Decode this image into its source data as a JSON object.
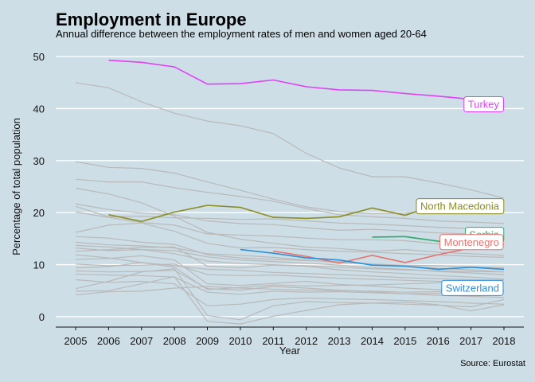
{
  "chart_data": {
    "type": "line",
    "title": "Employment in Europe",
    "subtitle": "Annual difference between the employment rates of men and women aged 20-64",
    "xlabel": "Year",
    "ylabel": "Percentage of total population",
    "caption": "Source: Eurostat",
    "x": [
      2005,
      2006,
      2007,
      2008,
      2009,
      2010,
      2011,
      2012,
      2013,
      2014,
      2015,
      2016,
      2017,
      2018
    ],
    "ylim": [
      -2,
      52
    ],
    "yticks": [
      0,
      10,
      20,
      30,
      40,
      50
    ],
    "grid": "horizontal",
    "legend": "direct labels at line ends",
    "colors": {
      "background": "#cddee6",
      "gridline": "#ffffff",
      "other_countries": "#b9b9b9",
      "Turkey": "#e040fb",
      "North Macedonia": "#8b8d1f",
      "Serbia": "#2ea76d",
      "Montenegro": "#e8726c",
      "Switzerland": "#2b8fd9"
    },
    "highlighted_series": [
      {
        "name": "Turkey",
        "values": [
          null,
          49.3,
          48.9,
          48.0,
          44.7,
          44.8,
          45.5,
          44.2,
          43.6,
          43.5,
          42.9,
          42.4,
          41.8,
          40.9
        ]
      },
      {
        "name": "North Macedonia",
        "values": [
          null,
          19.6,
          18.3,
          20.1,
          21.4,
          21.0,
          19.1,
          18.9,
          19.2,
          20.9,
          19.5,
          21.6,
          21.2,
          21.3
        ]
      },
      {
        "name": "Serbia",
        "values": [
          null,
          null,
          null,
          null,
          null,
          null,
          null,
          null,
          null,
          15.3,
          15.4,
          14.5,
          14.1,
          14.8
        ]
      },
      {
        "name": "Montenegro",
        "values": [
          null,
          null,
          null,
          null,
          null,
          null,
          12.6,
          11.6,
          10.3,
          11.8,
          10.4,
          11.9,
          13.2,
          13.9
        ]
      },
      {
        "name": "Switzerland",
        "values": [
          null,
          null,
          null,
          null,
          null,
          12.9,
          12.2,
          11.3,
          10.9,
          9.9,
          9.7,
          9.1,
          9.5,
          9.1
        ]
      }
    ],
    "other_series": [
      {
        "values": [
          45.0,
          44.0,
          41.3,
          39.1,
          37.6,
          36.7,
          35.2,
          31.4,
          28.6,
          26.9,
          26.9,
          25.7,
          24.4,
          22.8
        ]
      },
      {
        "values": [
          29.8,
          28.7,
          28.5,
          27.6,
          25.9,
          24.3,
          22.6,
          21.1,
          20.2,
          19.8,
          19.9,
          20.4,
          20.6,
          20.9
        ]
      },
      {
        "values": [
          26.4,
          25.9,
          25.9,
          24.8,
          23.9,
          23.1,
          22.2,
          20.8,
          19.6,
          19.2,
          18.9,
          18.4,
          18.2,
          17.9
        ]
      },
      {
        "values": [
          24.7,
          23.6,
          21.9,
          19.3,
          16.2,
          14.9,
          14.1,
          13.4,
          13.1,
          12.6,
          12.9,
          12.4,
          12.1,
          11.8
        ]
      },
      {
        "values": [
          21.7,
          20.6,
          19.9,
          19.6,
          18.4,
          17.9,
          17.7,
          17.1,
          16.6,
          16.8,
          16.5,
          16.1,
          15.9,
          15.6
        ]
      },
      {
        "values": [
          21.2,
          19.2,
          19.3,
          19.0,
          18.9,
          18.7,
          18.8,
          18.4,
          18.0,
          17.8,
          17.5,
          17.2,
          16.9,
          16.6
        ]
      },
      {
        "values": [
          20.1,
          19.1,
          18.1,
          17.6,
          15.9,
          15.7,
          15.5,
          15.1,
          14.8,
          14.8,
          14.6,
          14.0,
          13.9,
          13.9
        ]
      },
      {
        "values": [
          16.2,
          17.6,
          18.0,
          16.4,
          14.1,
          13.2,
          13.3,
          12.9,
          12.6,
          12.4,
          12.1,
          11.9,
          11.6,
          11.4
        ]
      },
      {
        "values": [
          15.4,
          15.1,
          14.3,
          13.9,
          11.9,
          11.3,
          11.0,
          10.8,
          10.6,
          10.1,
          9.9,
          9.8,
          9.6,
          9.4
        ]
      },
      {
        "values": [
          14.3,
          13.8,
          13.6,
          13.2,
          12.1,
          11.8,
          11.4,
          10.9,
          10.4,
          10.1,
          9.8,
          9.3,
          9.0,
          8.6
        ]
      },
      {
        "values": [
          13.7,
          13.4,
          12.9,
          12.7,
          11.5,
          10.9,
          10.6,
          10.3,
          9.9,
          9.4,
          9.1,
          8.7,
          8.4,
          8.1
        ]
      },
      {
        "values": [
          13.2,
          12.7,
          12.9,
          12.1,
          10.7,
          10.2,
          10.0,
          9.8,
          9.5,
          9.2,
          9.0,
          8.8,
          8.7,
          8.6
        ]
      },
      {
        "values": [
          12.6,
          12.9,
          13.3,
          13.4,
          9.7,
          9.4,
          9.9,
          9.7,
          9.0,
          8.6,
          8.3,
          7.9,
          7.6,
          7.2
        ]
      },
      {
        "values": [
          11.9,
          11.3,
          10.4,
          9.8,
          9.1,
          8.9,
          8.5,
          8.3,
          8.1,
          7.8,
          7.5,
          7.3,
          7.1,
          7.0
        ]
      },
      {
        "values": [
          11.0,
          11.2,
          11.7,
          10.9,
          6.3,
          6.0,
          6.4,
          6.8,
          6.2,
          5.9,
          5.5,
          5.2,
          5.0,
          4.9
        ]
      },
      {
        "values": [
          10.1,
          9.8,
          9.9,
          10.1,
          8.1,
          7.9,
          8.0,
          7.7,
          7.4,
          7.2,
          7.0,
          6.8,
          6.6,
          6.5
        ]
      },
      {
        "values": [
          9.4,
          9.6,
          10.4,
          9.5,
          5.2,
          5.6,
          6.1,
          5.9,
          6.0,
          6.1,
          6.3,
          6.5,
          6.8,
          7.0
        ]
      },
      {
        "values": [
          8.8,
          8.6,
          8.7,
          8.9,
          5.4,
          5.1,
          5.8,
          5.5,
          5.1,
          4.8,
          4.4,
          4.1,
          3.9,
          3.7
        ]
      },
      {
        "values": [
          8.2,
          8.0,
          7.9,
          7.6,
          4.7,
          4.3,
          4.9,
          4.7,
          4.8,
          4.6,
          4.4,
          4.5,
          4.6,
          4.5
        ]
      },
      {
        "values": [
          7.1,
          6.6,
          6.8,
          6.3,
          2.1,
          2.4,
          3.3,
          3.6,
          3.4,
          3.3,
          3.1,
          2.9,
          2.6,
          2.4
        ]
      },
      {
        "values": [
          5.4,
          6.8,
          8.6,
          9.2,
          0.2,
          -0.6,
          2.1,
          2.9,
          2.7,
          2.6,
          2.4,
          2.2,
          1.9,
          3.3
        ]
      },
      {
        "values": [
          4.9,
          5.0,
          6.3,
          7.7,
          -0.9,
          -1.4,
          0.1,
          1.2,
          2.3,
          2.6,
          2.8,
          2.3,
          1.1,
          2.3
        ]
      },
      {
        "values": [
          4.2,
          4.8,
          4.9,
          5.5,
          5.8,
          5.5,
          5.3,
          5.1,
          5.0,
          4.9,
          4.7,
          4.8,
          4.9,
          5.1
        ]
      }
    ]
  }
}
